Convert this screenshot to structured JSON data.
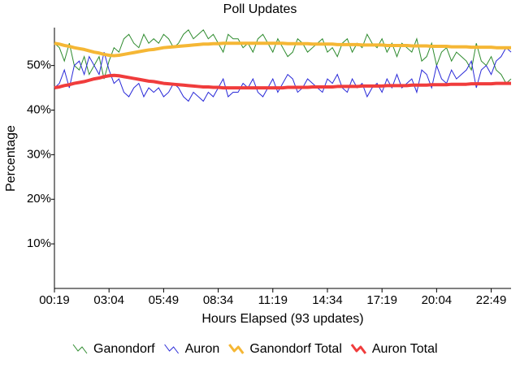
{
  "chart_data": {
    "type": "line",
    "title": "Poll Updates",
    "x_label": "Hours Elapsed (93 updates)",
    "y_label": "Percentage",
    "categories": [
      "00:19",
      null,
      null,
      null,
      null,
      null,
      null,
      null,
      null,
      null,
      null,
      "03:04",
      null,
      null,
      null,
      null,
      null,
      null,
      null,
      null,
      null,
      null,
      "05:49",
      null,
      null,
      null,
      null,
      null,
      null,
      null,
      null,
      null,
      null,
      "08:34",
      null,
      null,
      null,
      null,
      null,
      null,
      null,
      null,
      null,
      null,
      "11:19",
      null,
      null,
      null,
      null,
      null,
      null,
      null,
      null,
      null,
      null,
      "14:34",
      null,
      null,
      null,
      null,
      null,
      null,
      null,
      null,
      null,
      null,
      "17:19",
      null,
      null,
      null,
      null,
      null,
      null,
      null,
      null,
      null,
      null,
      "20:04",
      null,
      null,
      null,
      null,
      null,
      null,
      null,
      null,
      null,
      null,
      "22:49",
      null,
      null,
      null,
      null
    ],
    "ylim": [
      0,
      58.5
    ],
    "yticks": [
      {
        "value": 10,
        "label": "10%"
      },
      {
        "value": 20,
        "label": "20%"
      },
      {
        "value": 30,
        "label": "30%"
      },
      {
        "value": 40,
        "label": "40%"
      },
      {
        "value": 50,
        "label": "50%"
      }
    ],
    "legend": "bottom",
    "series": [
      {
        "name": "Ganondorf",
        "color": "#2e8b2e",
        "values": [
          55,
          54,
          51,
          55,
          50,
          49,
          52,
          48,
          50,
          52,
          47,
          51,
          54,
          53,
          56,
          57,
          55,
          54,
          57,
          55,
          56,
          55,
          57,
          56,
          54,
          55,
          57,
          58,
          56,
          57,
          58,
          56,
          57,
          55,
          53,
          57,
          56,
          56,
          54,
          55,
          53,
          56,
          57,
          55,
          53,
          56,
          54,
          52,
          53,
          56,
          55,
          53,
          54,
          55,
          56,
          53,
          54,
          52,
          55,
          56,
          53,
          55,
          54,
          57,
          55,
          54,
          56,
          53,
          55,
          52,
          55,
          54,
          53,
          56,
          51,
          52,
          55,
          50,
          53,
          54,
          51,
          53,
          52,
          51,
          49,
          55,
          51,
          50,
          52,
          49,
          48,
          46,
          47
        ]
      },
      {
        "name": "Auron",
        "color": "#2a2ad8",
        "values": [
          45,
          46,
          49,
          45,
          50,
          51,
          48,
          52,
          50,
          48,
          53,
          49,
          46,
          47,
          44,
          43,
          45,
          46,
          43,
          45,
          44,
          45,
          43,
          44,
          46,
          45,
          43,
          42,
          44,
          43,
          42,
          44,
          43,
          45,
          47,
          43,
          44,
          44,
          46,
          45,
          47,
          44,
          43,
          45,
          47,
          44,
          46,
          48,
          47,
          44,
          45,
          47,
          46,
          45,
          44,
          47,
          46,
          48,
          45,
          44,
          47,
          45,
          46,
          43,
          45,
          46,
          44,
          47,
          45,
          48,
          45,
          46,
          47,
          44,
          49,
          48,
          45,
          50,
          47,
          46,
          49,
          47,
          48,
          49,
          51,
          45,
          49,
          50,
          48,
          51,
          52,
          54,
          53
        ]
      },
      {
        "name": "Ganondorf Total",
        "color": "#f5b735",
        "values": [
          55.0,
          54.8,
          54.5,
          54.3,
          54.0,
          53.8,
          53.6,
          53.3,
          53.0,
          52.8,
          52.5,
          52.3,
          52.2,
          52.3,
          52.5,
          52.7,
          52.9,
          53.1,
          53.3,
          53.5,
          53.6,
          53.8,
          54.0,
          54.1,
          54.2,
          54.3,
          54.4,
          54.5,
          54.6,
          54.7,
          54.8,
          54.8,
          54.9,
          54.9,
          55.0,
          55.0,
          55.0,
          55.0,
          55.0,
          55.0,
          55.0,
          55.0,
          55.0,
          55.0,
          55.0,
          55.0,
          55.0,
          54.9,
          54.9,
          54.9,
          54.9,
          54.9,
          54.8,
          54.8,
          54.8,
          54.8,
          54.8,
          54.7,
          54.7,
          54.7,
          54.7,
          54.7,
          54.6,
          54.6,
          54.6,
          54.6,
          54.6,
          54.5,
          54.5,
          54.5,
          54.5,
          54.5,
          54.4,
          54.4,
          54.4,
          54.4,
          54.3,
          54.3,
          54.3,
          54.3,
          54.2,
          54.2,
          54.2,
          54.2,
          54.1,
          54.1,
          54.1,
          54.1,
          54.1,
          54.0,
          54.0,
          54.0,
          54.0
        ]
      },
      {
        "name": "Auron Total",
        "color": "#f03c3c",
        "values": [
          45.0,
          45.2,
          45.5,
          45.7,
          46.0,
          46.2,
          46.4,
          46.7,
          47.0,
          47.2,
          47.5,
          47.7,
          47.8,
          47.7,
          47.5,
          47.3,
          47.1,
          46.9,
          46.7,
          46.5,
          46.4,
          46.2,
          46.0,
          45.9,
          45.8,
          45.7,
          45.6,
          45.5,
          45.4,
          45.3,
          45.2,
          45.2,
          45.1,
          45.1,
          45.0,
          45.0,
          45.0,
          45.0,
          45.0,
          45.0,
          45.0,
          45.0,
          45.0,
          45.0,
          45.0,
          45.0,
          45.0,
          45.1,
          45.1,
          45.1,
          45.1,
          45.1,
          45.2,
          45.2,
          45.2,
          45.2,
          45.2,
          45.3,
          45.3,
          45.3,
          45.3,
          45.3,
          45.4,
          45.4,
          45.4,
          45.4,
          45.4,
          45.5,
          45.5,
          45.5,
          45.5,
          45.5,
          45.6,
          45.6,
          45.6,
          45.6,
          45.7,
          45.7,
          45.7,
          45.7,
          45.8,
          45.8,
          45.8,
          45.8,
          45.9,
          45.9,
          45.9,
          45.9,
          45.9,
          46.0,
          46.0,
          46.0,
          46.0
        ]
      }
    ]
  }
}
